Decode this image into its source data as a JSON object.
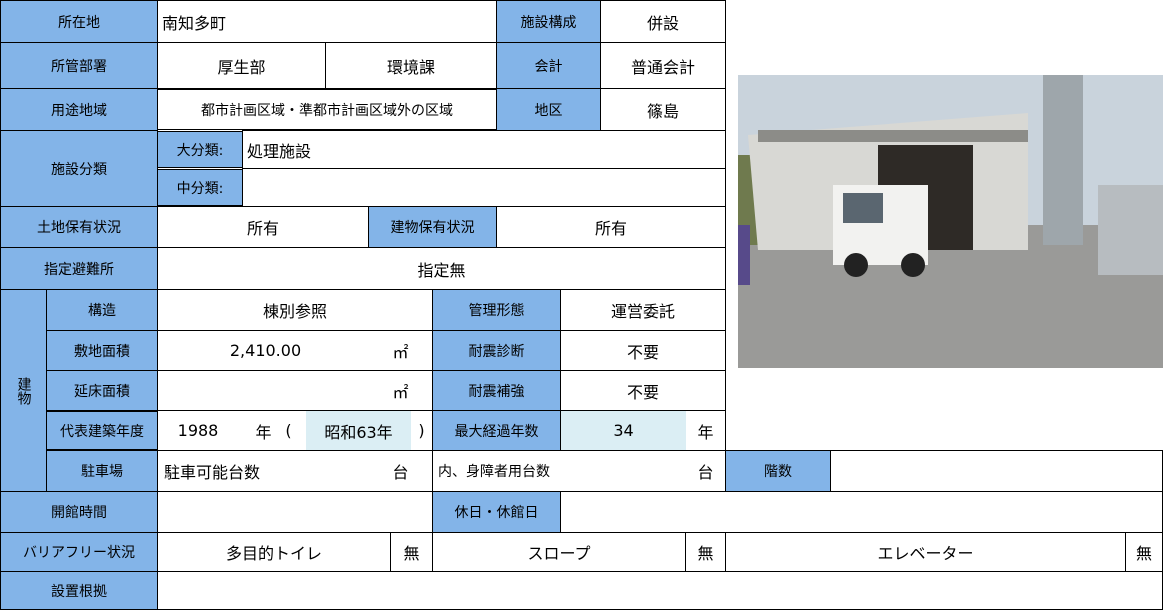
{
  "table": {
    "location_label": "所在地",
    "location": "南知多町",
    "composition_label": "施設構成",
    "composition": "併設",
    "department_label": "所管部署",
    "department": "厚生部",
    "section": "環境課",
    "account_label": "会計",
    "account": "普通会計",
    "zoning_label": "用途地域",
    "zoning": "都市計画区域・準都市計画区域外の区域",
    "district_label": "地区",
    "district": "篠島",
    "classification_label": "施設分類",
    "major_label": "大分類:",
    "major": "処理施設",
    "minor_label": "中分類:",
    "land_label": "土地保有状況",
    "land": "所有",
    "building_own_label": "建物保有状況",
    "building_own": "所有",
    "shelter_label": "指定避難所",
    "shelter": "指定無",
    "building_label": "建物",
    "structure_label": "構造",
    "structure": "棟別参照",
    "management_label": "管理形態",
    "management": "運営委託",
    "site_area_label": "敷地面積",
    "site_area": "2,410.00",
    "area_unit": "㎡",
    "seismic_diag_label": "耐震診断",
    "seismic_diag": "不要",
    "floor_area_label": "延床面積",
    "seismic_retro_label": "耐震補強",
    "seismic_retro": "不要",
    "year_label": "代表建築年度",
    "year": "1988",
    "year_unit": "年",
    "paren_open": "(",
    "era_year": "昭和63年",
    "paren_close": ")",
    "elapsed_label": "最大経過年数",
    "elapsed": "34",
    "elapsed_unit": "年",
    "parking_label": "駐車場",
    "parking_capacity": "駐車可能台数",
    "count_unit": "台",
    "disabled_parking": "内、身障者用台数",
    "floors_label": "階数",
    "hours_label": "開館時間",
    "holiday_label": "休日・休館日",
    "barrier_label": "バリアフリー状況",
    "toilet": "多目的トイレ",
    "toilet_value": "無",
    "slope": "スロープ",
    "slope_value": "無",
    "elevator": "エレベーター",
    "elevator_value": "無",
    "basis_label": "設置根拠"
  }
}
